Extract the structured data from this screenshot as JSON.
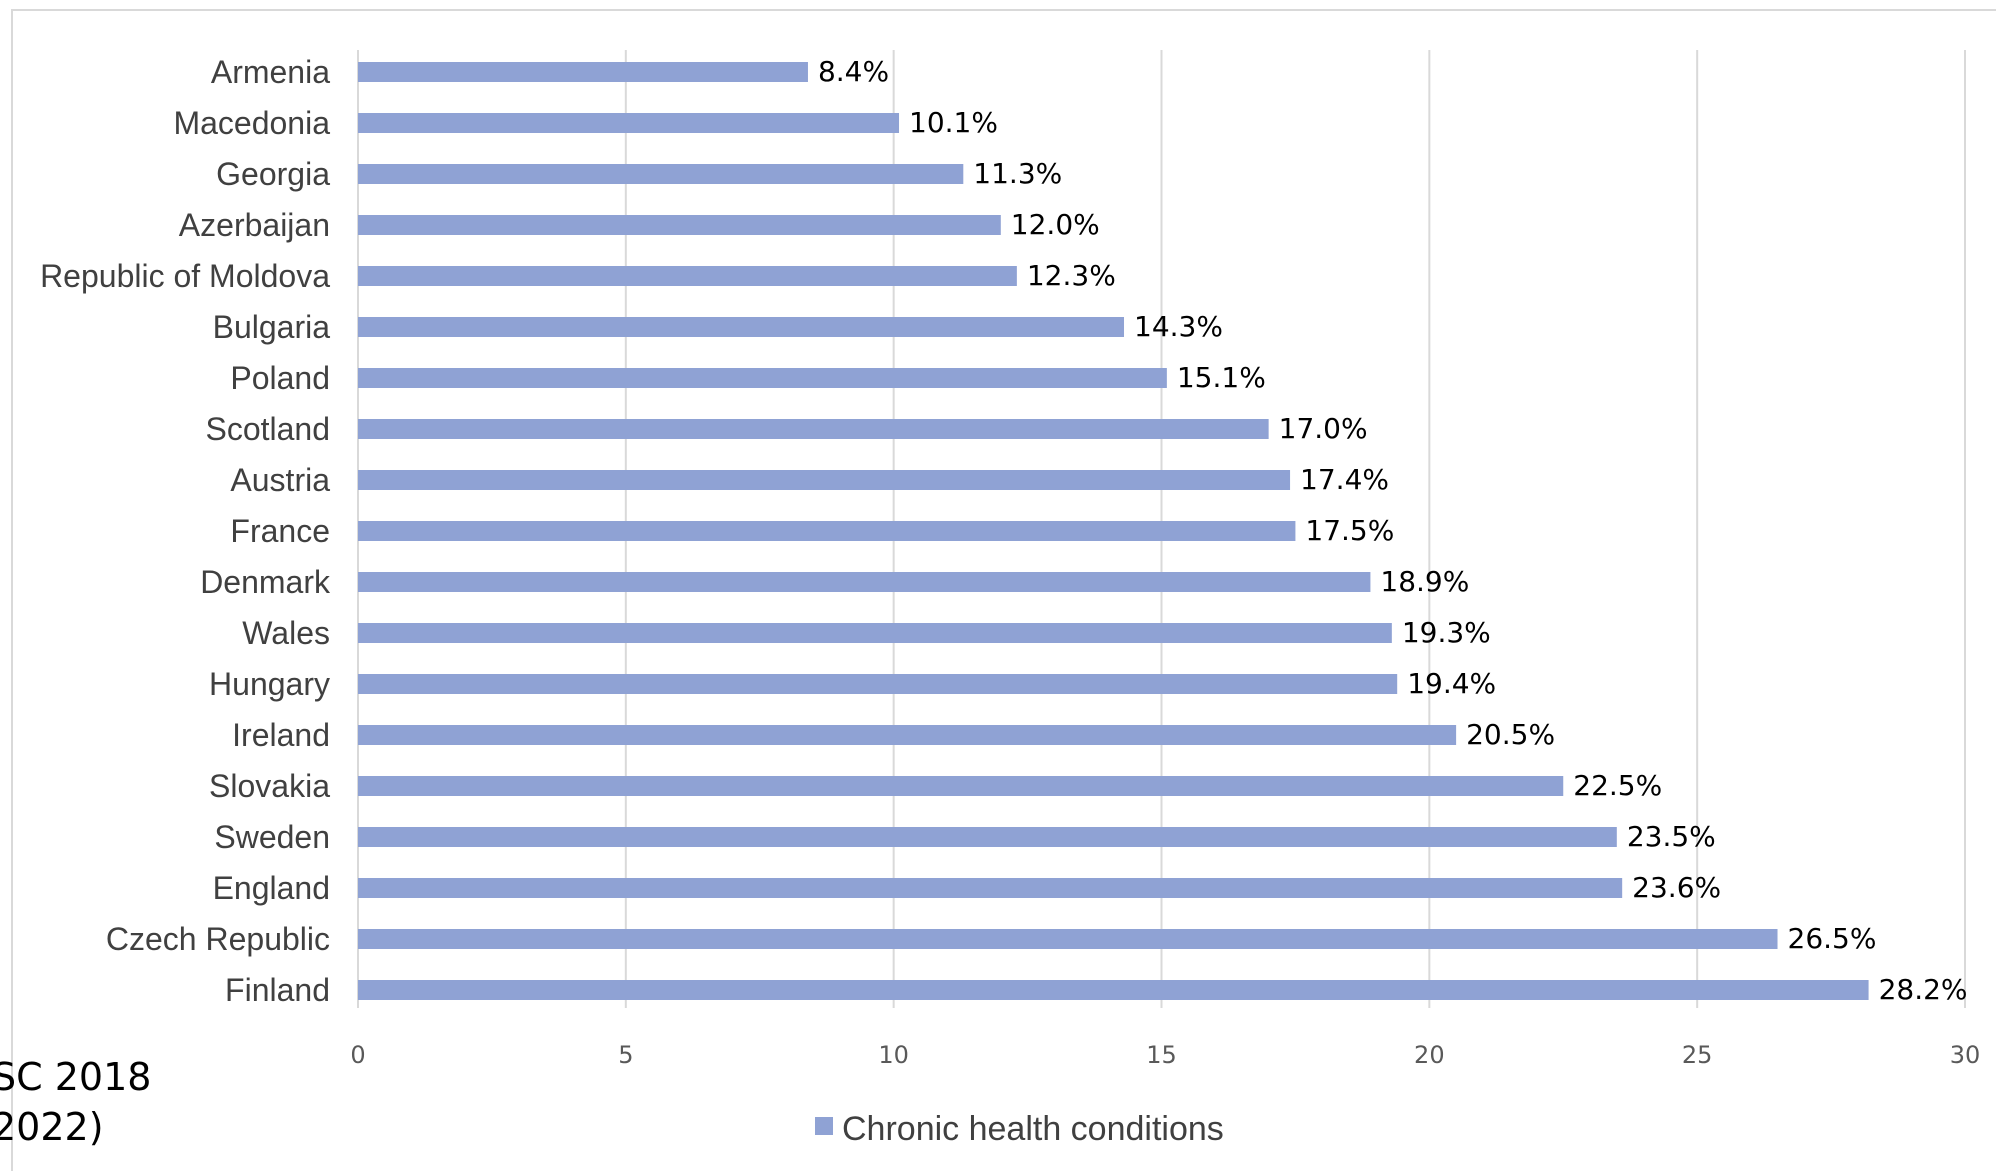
{
  "chart_data": {
    "type": "bar",
    "orientation": "horizontal",
    "title": "",
    "xlabel": "",
    "ylabel": "",
    "xlim": [
      0,
      30
    ],
    "x_ticks": [
      0,
      5,
      10,
      15,
      20,
      25,
      30
    ],
    "grid": true,
    "legend_position": "bottom",
    "categories": [
      "Armenia",
      "Macedonia",
      "Georgia",
      "Azerbaijan",
      "Republic of Moldova",
      "Bulgaria",
      "Poland",
      "Scotland",
      "Austria",
      "France",
      "Denmark",
      "Wales",
      "Hungary",
      "Ireland",
      "Slovakia",
      "Sweden",
      "England",
      "Czech Republic",
      "Finland"
    ],
    "series": [
      {
        "name": "Chronic health conditions",
        "color": "#8fa2d4",
        "values": [
          8.4,
          10.1,
          11.3,
          12.0,
          12.3,
          14.3,
          15.1,
          17.0,
          17.4,
          17.5,
          18.9,
          19.3,
          19.4,
          20.5,
          22.5,
          23.5,
          23.6,
          26.5,
          28.2
        ],
        "data_labels": [
          "8.4%",
          "10.1%",
          "11.3%",
          "12.0%",
          "12.3%",
          "14.3%",
          "15.1%",
          "17.0%",
          "17.4%",
          "17.5%",
          "18.9%",
          "19.3%",
          "19.4%",
          "20.5%",
          "22.5%",
          "23.5%",
          "23.6%",
          "26.5%",
          "28.2%"
        ]
      }
    ]
  },
  "source_note": {
    "line1": "SC 2018",
    "line2": "2022)"
  }
}
